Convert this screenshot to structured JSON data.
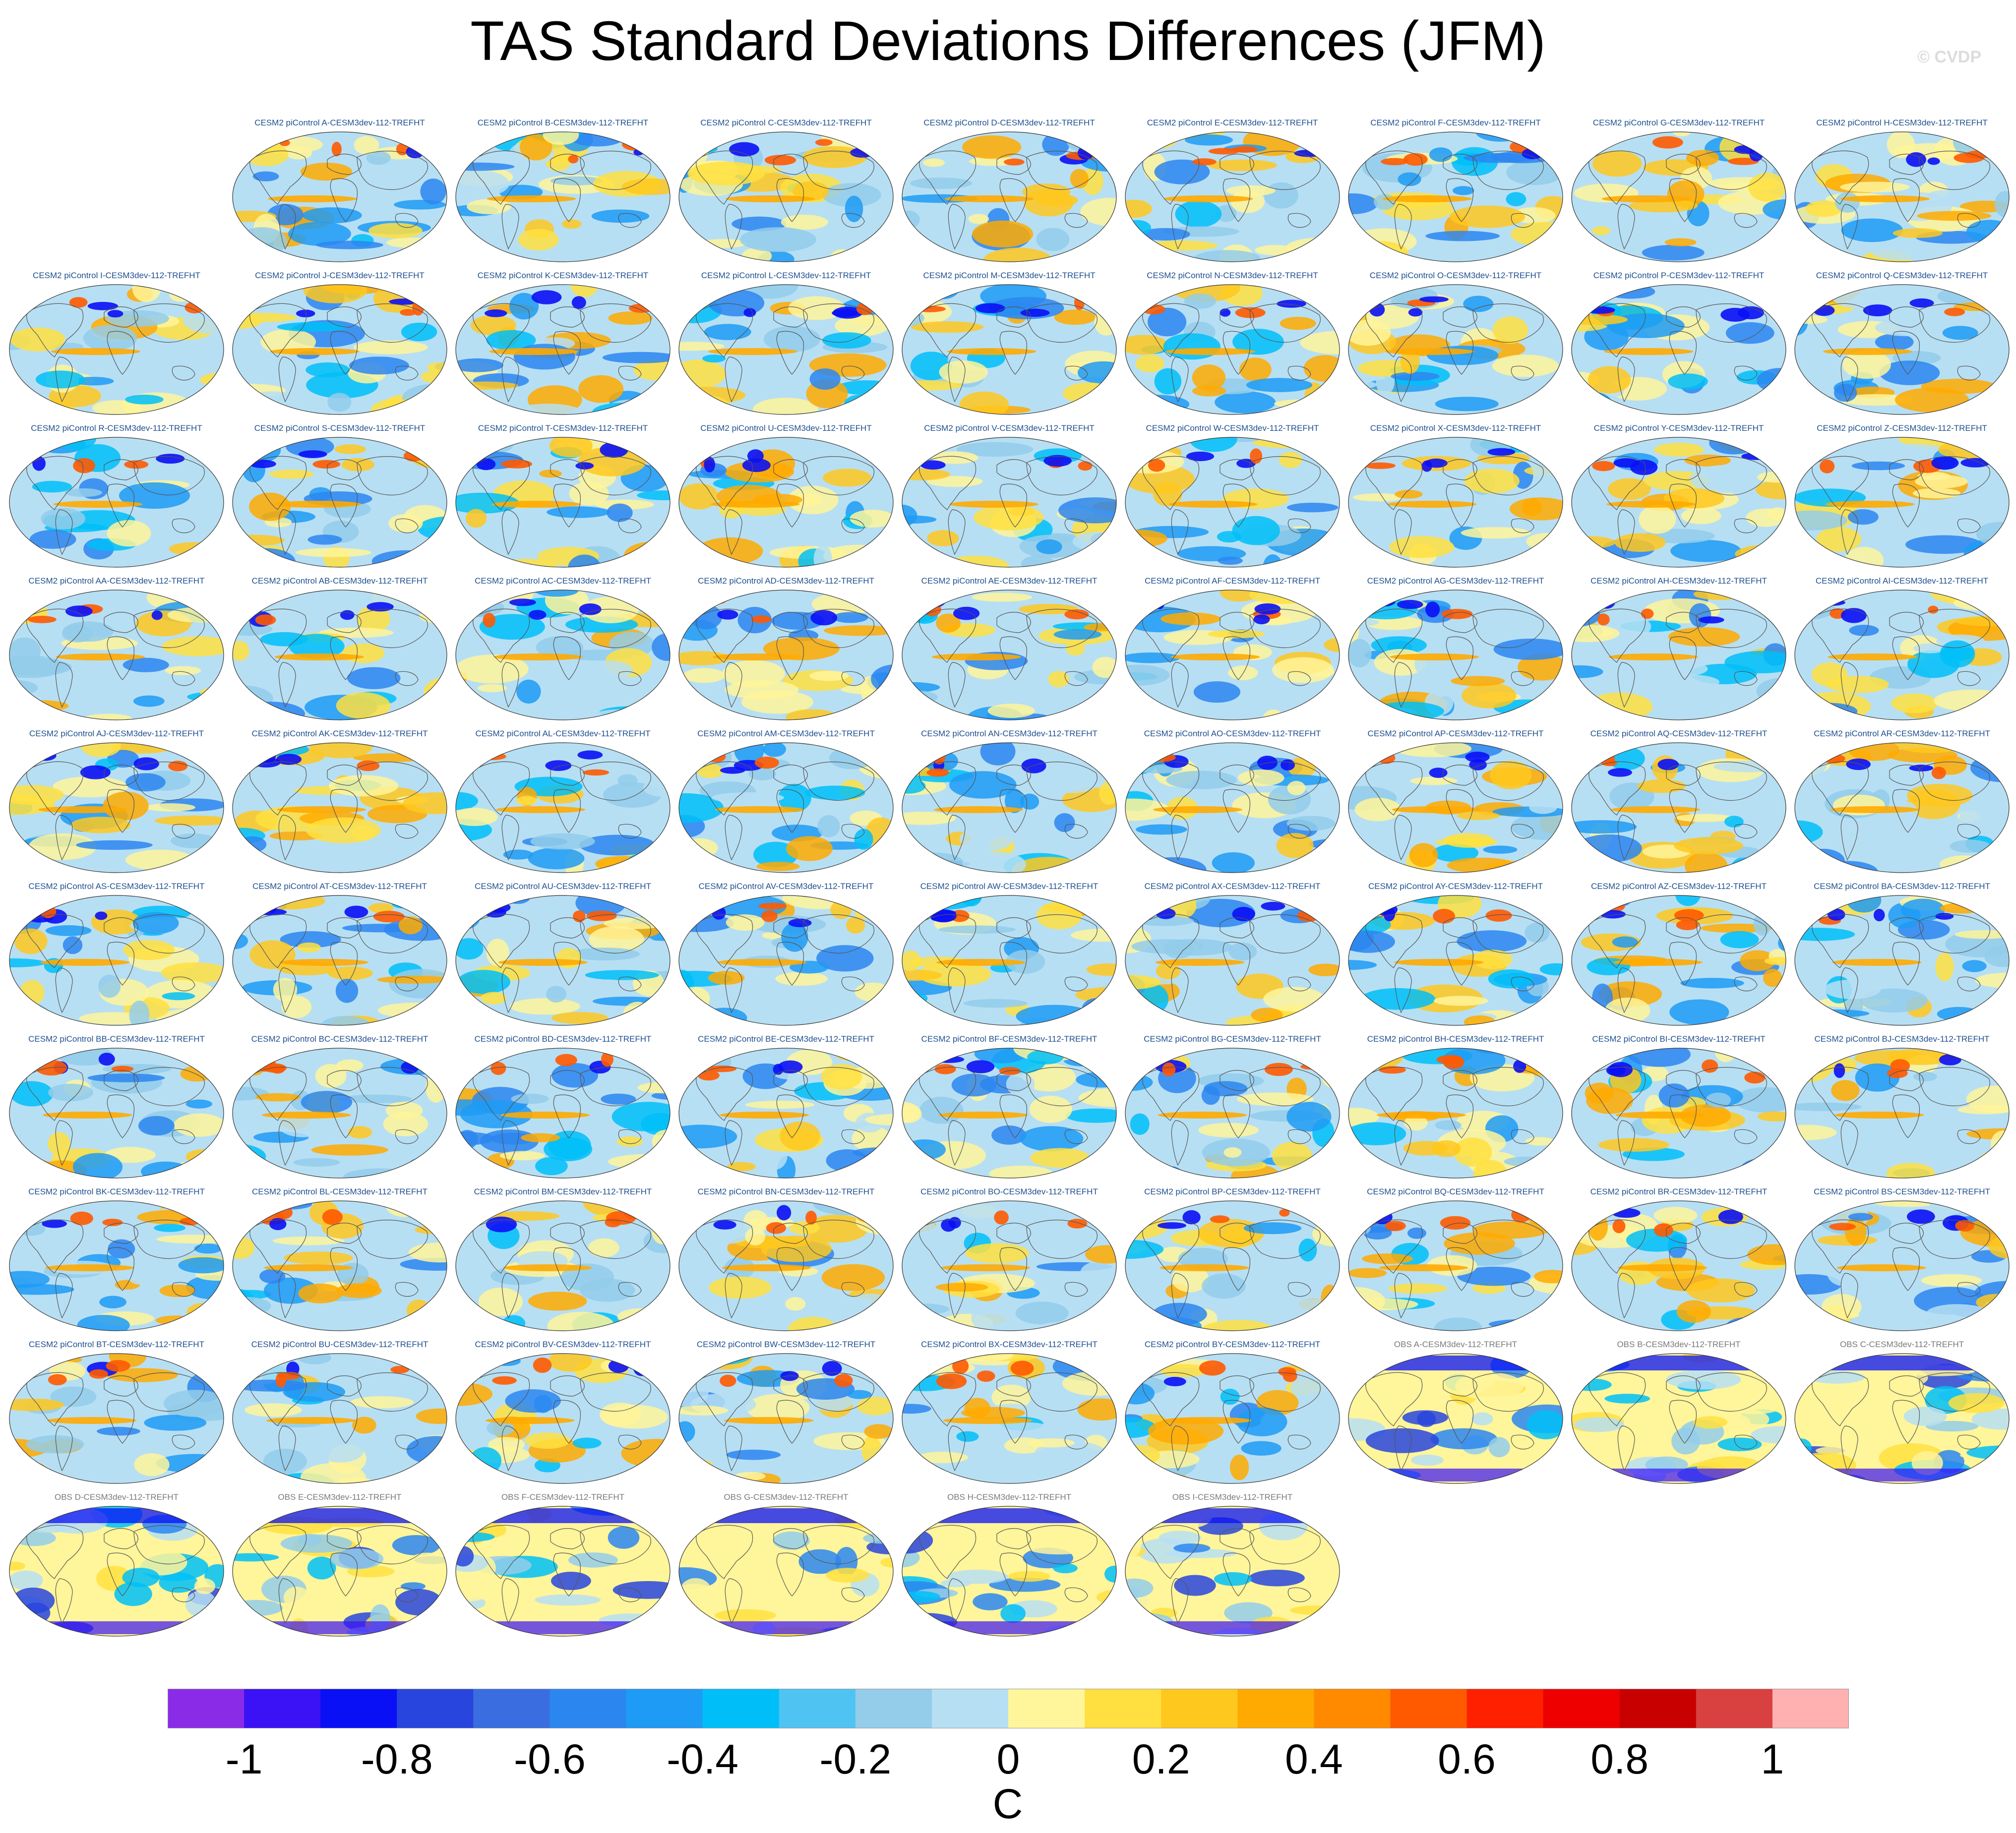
{
  "title": "TAS Standard Deviations Differences (JFM)",
  "watermark": "© CVDP",
  "chart_data": {
    "type": "heatmap",
    "title": "TAS Standard Deviations Differences (JFM)",
    "variable": "TAS",
    "season": "JFM",
    "projection": "global map",
    "panels": [
      "CESM2 piControl A-CESM3dev-112-TREFHT",
      "CESM2 piControl B-CESM3dev-112-TREFHT",
      "CESM2 piControl C-CESM3dev-112-TREFHT",
      "CESM2 piControl D-CESM3dev-112-TREFHT",
      "CESM2 piControl E-CESM3dev-112-TREFHT",
      "CESM2 piControl F-CESM3dev-112-TREFHT",
      "CESM2 piControl G-CESM3dev-112-TREFHT",
      "CESM2 piControl H-CESM3dev-112-TREFHT",
      "CESM2 piControl I-CESM3dev-112-TREFHT",
      "CESM2 piControl J-CESM3dev-112-TREFHT",
      "CESM2 piControl K-CESM3dev-112-TREFHT",
      "CESM2 piControl L-CESM3dev-112-TREFHT",
      "CESM2 piControl M-CESM3dev-112-TREFHT",
      "CESM2 piControl N-CESM3dev-112-TREFHT",
      "CESM2 piControl O-CESM3dev-112-TREFHT",
      "CESM2 piControl P-CESM3dev-112-TREFHT",
      "CESM2 piControl Q-CESM3dev-112-TREFHT",
      "CESM2 piControl R-CESM3dev-112-TREFHT",
      "CESM2 piControl S-CESM3dev-112-TREFHT",
      "CESM2 piControl T-CESM3dev-112-TREFHT",
      "CESM2 piControl U-CESM3dev-112-TREFHT",
      "CESM2 piControl V-CESM3dev-112-TREFHT",
      "CESM2 piControl W-CESM3dev-112-TREFHT",
      "CESM2 piControl X-CESM3dev-112-TREFHT",
      "CESM2 piControl Y-CESM3dev-112-TREFHT",
      "CESM2 piControl Z-CESM3dev-112-TREFHT",
      "CESM2 piControl AA-CESM3dev-112-TREFHT",
      "CESM2 piControl AB-CESM3dev-112-TREFHT",
      "CESM2 piControl AC-CESM3dev-112-TREFHT",
      "CESM2 piControl AD-CESM3dev-112-TREFHT",
      "CESM2 piControl AE-CESM3dev-112-TREFHT",
      "CESM2 piControl AF-CESM3dev-112-TREFHT",
      "CESM2 piControl AG-CESM3dev-112-TREFHT",
      "CESM2 piControl AH-CESM3dev-112-TREFHT",
      "CESM2 piControl AI-CESM3dev-112-TREFHT",
      "CESM2 piControl AJ-CESM3dev-112-TREFHT",
      "CESM2 piControl AK-CESM3dev-112-TREFHT",
      "CESM2 piControl AL-CESM3dev-112-TREFHT",
      "CESM2 piControl AM-CESM3dev-112-TREFHT",
      "CESM2 piControl AN-CESM3dev-112-TREFHT",
      "CESM2 piControl AO-CESM3dev-112-TREFHT",
      "CESM2 piControl AP-CESM3dev-112-TREFHT",
      "CESM2 piControl AQ-CESM3dev-112-TREFHT",
      "CESM2 piControl AR-CESM3dev-112-TREFHT",
      "CESM2 piControl AS-CESM3dev-112-TREFHT",
      "CESM2 piControl AT-CESM3dev-112-TREFHT",
      "CESM2 piControl AU-CESM3dev-112-TREFHT",
      "CESM2 piControl AV-CESM3dev-112-TREFHT",
      "CESM2 piControl AW-CESM3dev-112-TREFHT",
      "CESM2 piControl AX-CESM3dev-112-TREFHT",
      "CESM2 piControl AY-CESM3dev-112-TREFHT",
      "CESM2 piControl AZ-CESM3dev-112-TREFHT",
      "CESM2 piControl BA-CESM3dev-112-TREFHT",
      "CESM2 piControl BB-CESM3dev-112-TREFHT",
      "CESM2 piControl BC-CESM3dev-112-TREFHT",
      "CESM2 piControl BD-CESM3dev-112-TREFHT",
      "CESM2 piControl BE-CESM3dev-112-TREFHT",
      "CESM2 piControl BF-CESM3dev-112-TREFHT",
      "CESM2 piControl BG-CESM3dev-112-TREFHT",
      "CESM2 piControl BH-CESM3dev-112-TREFHT",
      "CESM2 piControl BI-CESM3dev-112-TREFHT",
      "CESM2 piControl BJ-CESM3dev-112-TREFHT",
      "CESM2 piControl BK-CESM3dev-112-TREFHT",
      "CESM2 piControl BL-CESM3dev-112-TREFHT",
      "CESM2 piControl BM-CESM3dev-112-TREFHT",
      "CESM2 piControl BN-CESM3dev-112-TREFHT",
      "CESM2 piControl BO-CESM3dev-112-TREFHT",
      "CESM2 piControl BP-CESM3dev-112-TREFHT",
      "CESM2 piControl BQ-CESM3dev-112-TREFHT",
      "CESM2 piControl BR-CESM3dev-112-TREFHT",
      "CESM2 piControl BS-CESM3dev-112-TREFHT",
      "CESM2 piControl BT-CESM3dev-112-TREFHT",
      "CESM2 piControl BU-CESM3dev-112-TREFHT",
      "CESM2 piControl BV-CESM3dev-112-TREFHT",
      "CESM2 piControl BW-CESM3dev-112-TREFHT",
      "CESM2 piControl BX-CESM3dev-112-TREFHT",
      "CESM2 piControl BY-CESM3dev-112-TREFHT",
      "OBS A-CESM3dev-112-TREFHT",
      "OBS B-CESM3dev-112-TREFHT",
      "OBS C-CESM3dev-112-TREFHT",
      "OBS D-CESM3dev-112-TREFHT",
      "OBS E-CESM3dev-112-TREFHT",
      "OBS F-CESM3dev-112-TREFHT",
      "OBS G-CESM3dev-112-TREFHT",
      "OBS H-CESM3dev-112-TREFHT",
      "OBS I-CESM3dev-112-TREFHT"
    ],
    "colorbar": {
      "unit": "C",
      "levels": [
        -1,
        -0.9,
        -0.8,
        -0.7,
        -0.6,
        -0.5,
        -0.4,
        -0.3,
        -0.2,
        -0.1,
        0,
        0.1,
        0.2,
        0.3,
        0.4,
        0.5,
        0.6,
        0.7,
        0.8,
        0.9,
        1
      ],
      "tick_labels": [
        "-1",
        "-0.8",
        "-0.6",
        "-0.4",
        "-0.2",
        "0",
        "0.2",
        "0.4",
        "0.6",
        "0.8",
        "1"
      ],
      "tick_values": [
        -1,
        -0.8,
        -0.6,
        -0.4,
        -0.2,
        0,
        0.2,
        0.4,
        0.6,
        0.8,
        1
      ],
      "colors": [
        "#8a2be8",
        "#3a12f5",
        "#0a10f5",
        "#2845dd",
        "#3a6ee0",
        "#2b86f0",
        "#1e9bf5",
        "#00bff8",
        "#4fc3f2",
        "#93cdea",
        "#b7dff3",
        "#fff59a",
        "#ffe040",
        "#ffc81e",
        "#ffaa00",
        "#ff8a00",
        "#ff5a00",
        "#ff2000",
        "#ee0000",
        "#c80000",
        "#d94040",
        "#ffb0b0"
      ]
    }
  }
}
